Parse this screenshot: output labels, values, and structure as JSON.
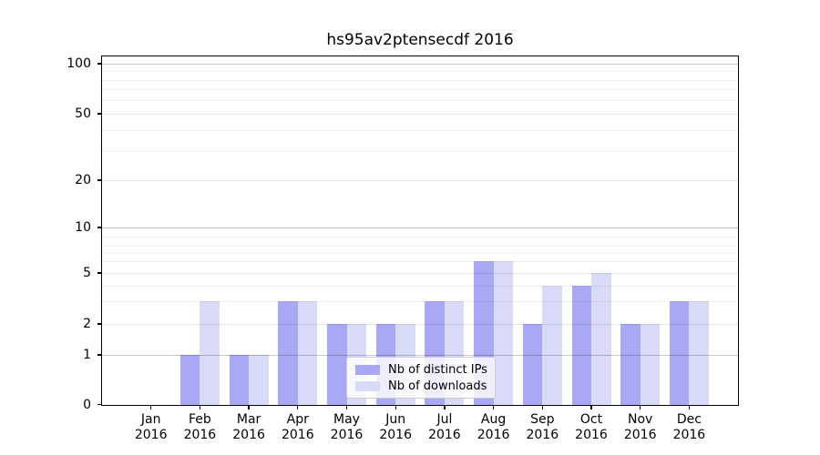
{
  "chart_data": {
    "type": "bar",
    "title": "hs95av2ptensecdf 2016",
    "x_tick_labels": [
      [
        "Jan",
        "2016"
      ],
      [
        "Feb",
        "2016"
      ],
      [
        "Mar",
        "2016"
      ],
      [
        "Apr",
        "2016"
      ],
      [
        "May",
        "2016"
      ],
      [
        "Jun",
        "2016"
      ],
      [
        "Jul",
        "2016"
      ],
      [
        "Aug",
        "2016"
      ],
      [
        "Sep",
        "2016"
      ],
      [
        "Oct",
        "2016"
      ],
      [
        "Nov",
        "2016"
      ],
      [
        "Dec",
        "2016"
      ]
    ],
    "y_ticks": [
      0,
      1,
      2,
      5,
      10,
      20,
      50,
      100
    ],
    "y_scale": "log",
    "ylim": [
      0,
      110
    ],
    "grid": true,
    "legend_position": "lower center",
    "series": [
      {
        "name": "Nb of distinct IPs",
        "color": "#a8a8f5",
        "values": [
          0,
          1,
          1,
          3,
          2,
          2,
          3,
          6,
          2,
          4,
          2,
          3
        ]
      },
      {
        "name": "Nb of downloads",
        "color": "#d9d9f8",
        "values": [
          0,
          3,
          1,
          3,
          2,
          2,
          3,
          6,
          4,
          5,
          2,
          3
        ]
      }
    ]
  }
}
